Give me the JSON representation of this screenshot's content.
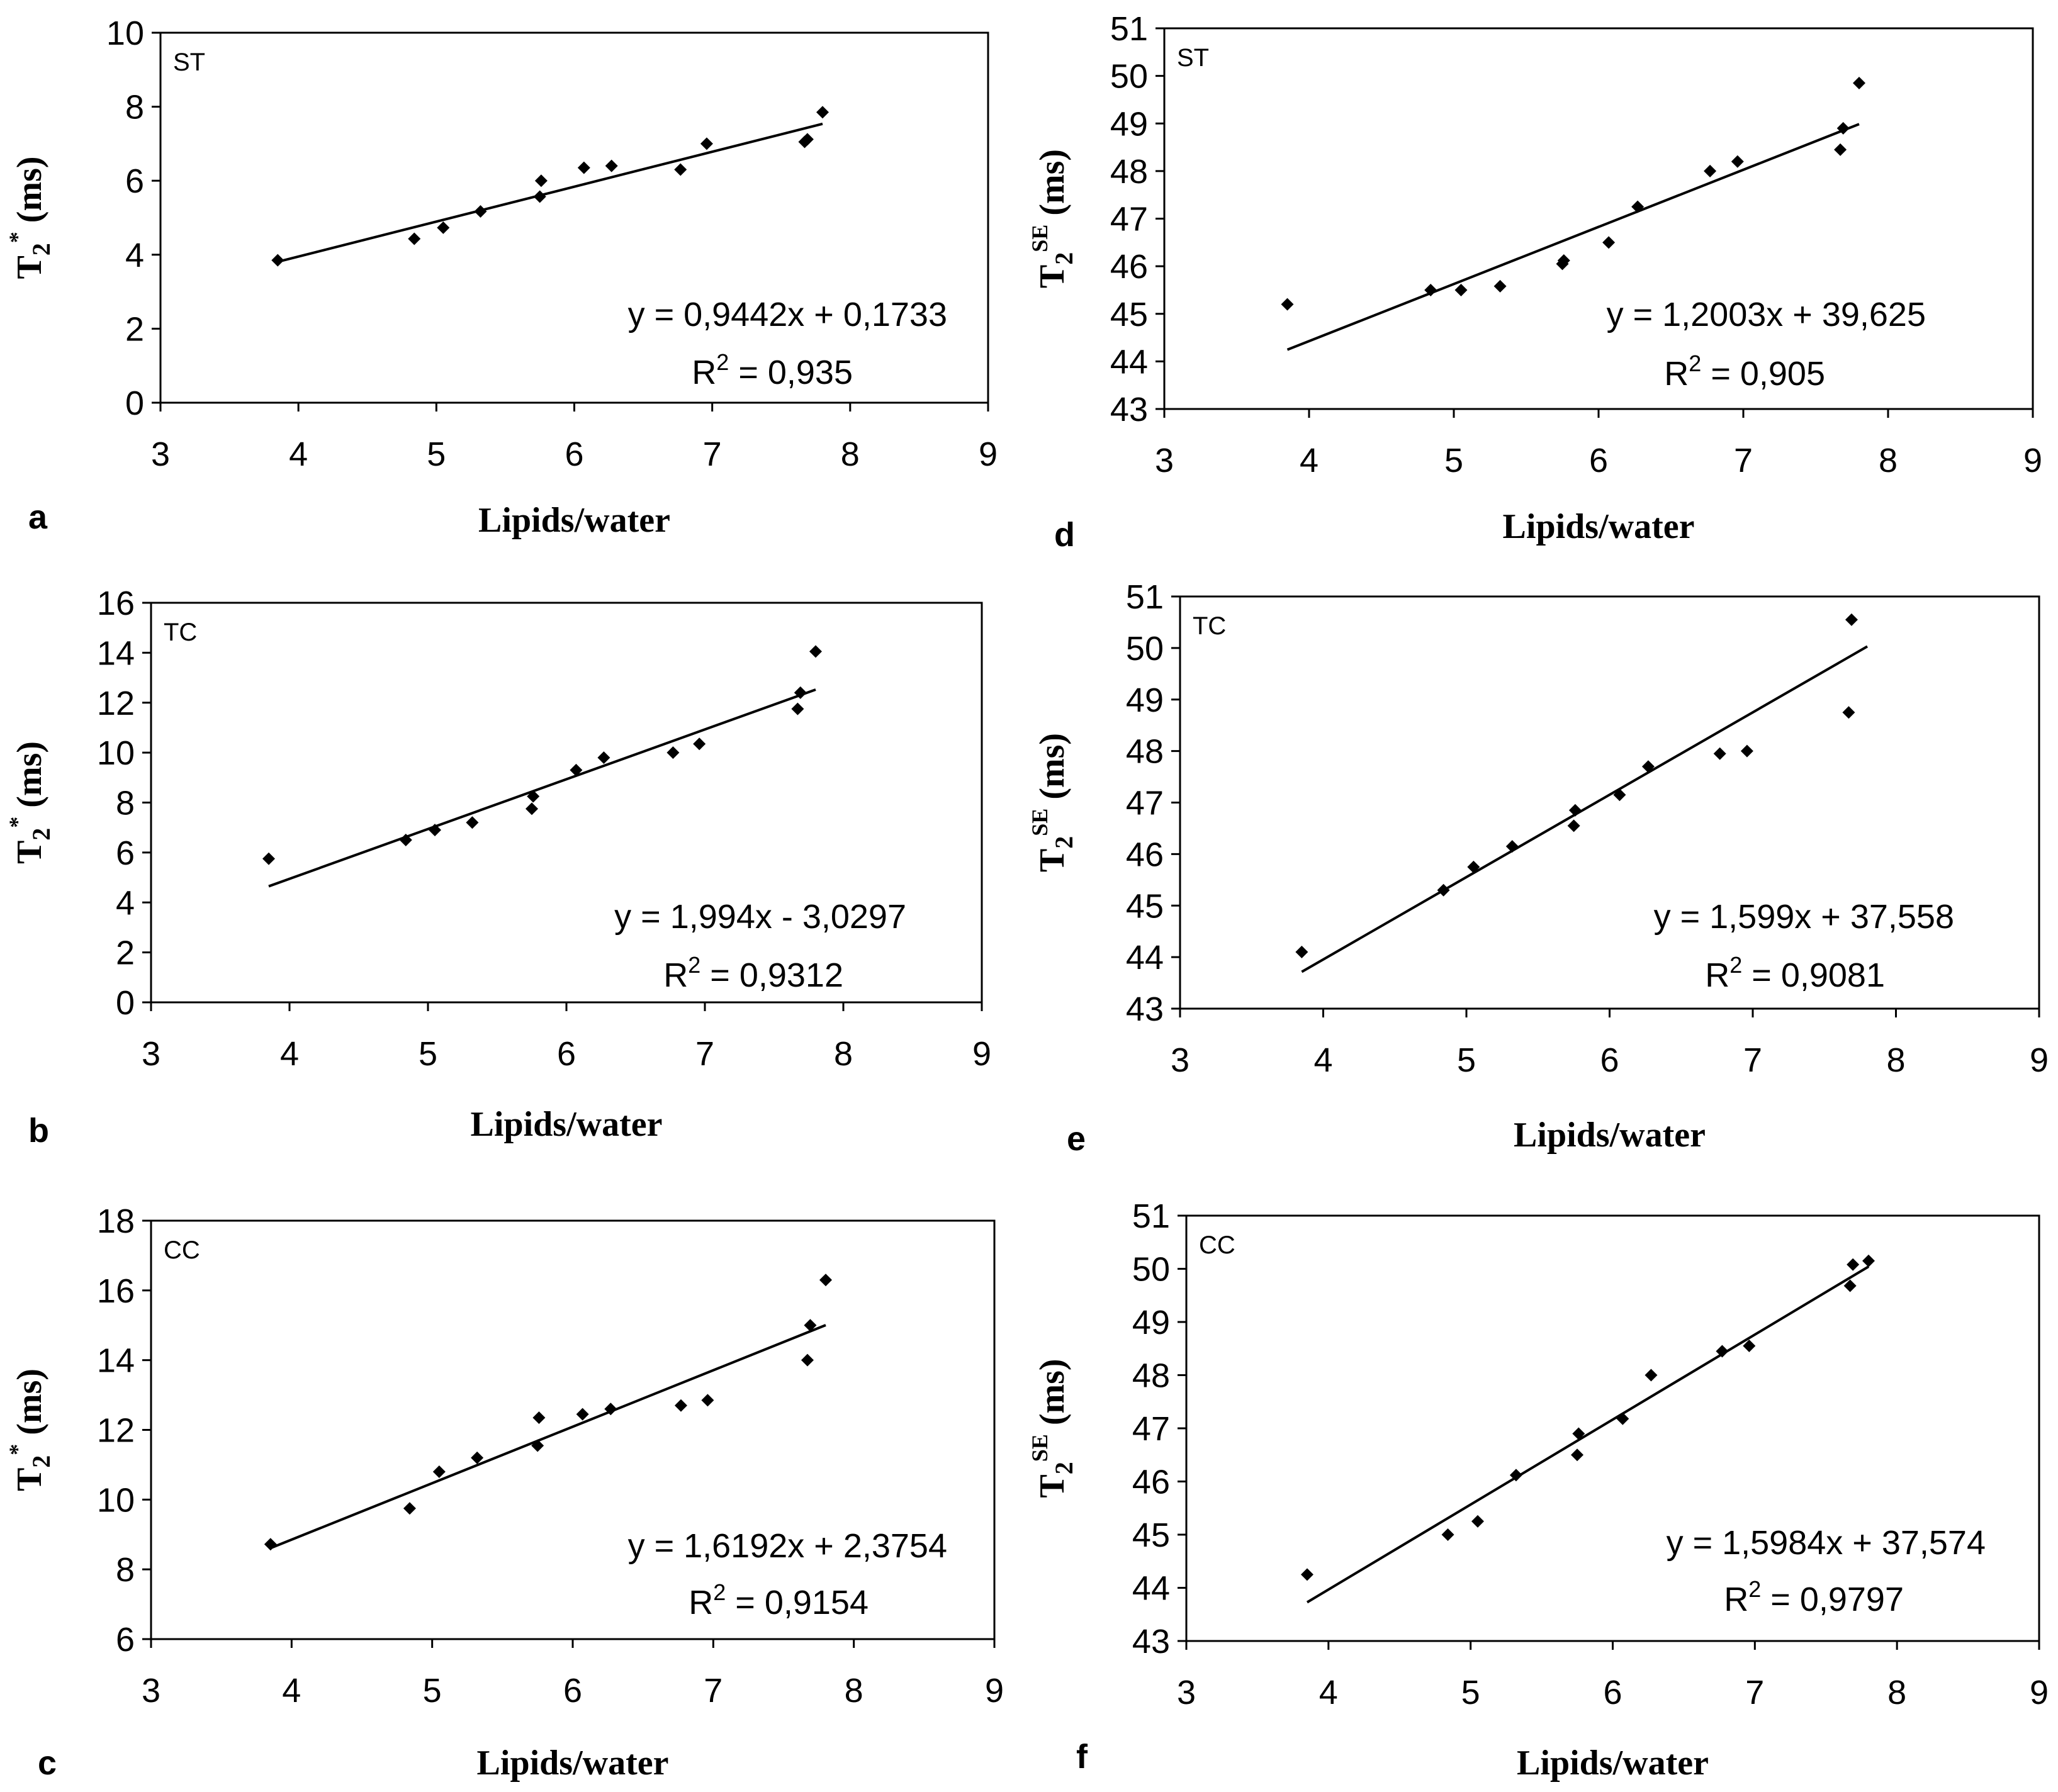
{
  "chart_data": [
    {
      "type": "scatter",
      "panel": "a",
      "tag": "ST",
      "xlabel": "Lipids/water",
      "ylabel_main": "T",
      "ylabel_sub": "2",
      "ylabel_sup": "*",
      "ylabel_unit": "(ms)",
      "xlim": [
        3,
        9
      ],
      "ylim": [
        0,
        10
      ],
      "xticks": [
        3,
        4,
        5,
        6,
        7,
        8,
        9
      ],
      "yticks": [
        0,
        2,
        4,
        6,
        8,
        10
      ],
      "points": [
        [
          3.85,
          3.85
        ],
        [
          4.84,
          4.43
        ],
        [
          5.05,
          4.73
        ],
        [
          5.32,
          5.17
        ],
        [
          5.75,
          5.57
        ],
        [
          5.76,
          6.0
        ],
        [
          6.07,
          6.35
        ],
        [
          6.27,
          6.4
        ],
        [
          6.77,
          6.3
        ],
        [
          6.96,
          7.0
        ],
        [
          7.67,
          7.05
        ],
        [
          7.69,
          7.12
        ],
        [
          7.8,
          7.85
        ]
      ],
      "fit": {
        "slope": 0.9442,
        "intercept": 0.1733,
        "x": [
          3.85,
          7.8
        ]
      },
      "equation": "y = 0,9442x + 0,1733",
      "r2_prefix": "R",
      "r2_exp": "2",
      "r2_value": " = 0,935"
    },
    {
      "type": "scatter",
      "panel": "b",
      "tag": "TC",
      "xlabel": "Lipids/water",
      "ylabel_main": "T",
      "ylabel_sub": "2",
      "ylabel_sup": "*",
      "ylabel_unit": "(ms)",
      "xlim": [
        3,
        9
      ],
      "ylim": [
        0,
        16
      ],
      "xticks": [
        3,
        4,
        5,
        6,
        7,
        8,
        9
      ],
      "yticks": [
        0,
        2,
        4,
        6,
        8,
        10,
        12,
        14,
        16
      ],
      "points": [
        [
          3.85,
          5.75
        ],
        [
          4.84,
          6.5
        ],
        [
          5.05,
          6.9
        ],
        [
          5.32,
          7.2
        ],
        [
          5.75,
          7.75
        ],
        [
          5.76,
          8.25
        ],
        [
          6.07,
          9.3
        ],
        [
          6.27,
          9.8
        ],
        [
          6.77,
          10.0
        ],
        [
          6.96,
          10.35
        ],
        [
          7.67,
          11.75
        ],
        [
          7.69,
          12.4
        ],
        [
          7.8,
          14.05
        ]
      ],
      "fit": {
        "slope": 1.994,
        "intercept": -3.0297,
        "x": [
          3.85,
          7.8
        ]
      },
      "equation": "y = 1,994x - 3,0297",
      "r2_prefix": "R",
      "r2_exp": "2",
      "r2_value": " = 0,9312"
    },
    {
      "type": "scatter",
      "panel": "c",
      "tag": "CC",
      "xlabel": "Lipids/water",
      "ylabel_main": "T",
      "ylabel_sub": "2",
      "ylabel_sup": "*",
      "ylabel_unit": "(ms)",
      "xlim": [
        3,
        9
      ],
      "ylim": [
        6,
        18
      ],
      "xticks": [
        3,
        4,
        5,
        6,
        7,
        8,
        9
      ],
      "yticks": [
        6,
        8,
        10,
        12,
        14,
        16,
        18
      ],
      "points": [
        [
          3.85,
          8.72
        ],
        [
          4.84,
          9.75
        ],
        [
          5.05,
          10.8
        ],
        [
          5.32,
          11.2
        ],
        [
          5.75,
          11.55
        ],
        [
          5.76,
          12.35
        ],
        [
          6.07,
          12.45
        ],
        [
          6.27,
          12.6
        ],
        [
          6.77,
          12.7
        ],
        [
          6.96,
          12.85
        ],
        [
          7.67,
          14.0
        ],
        [
          7.69,
          15.0
        ],
        [
          7.8,
          16.3
        ]
      ],
      "fit": {
        "slope": 1.6192,
        "intercept": 2.3754,
        "x": [
          3.85,
          7.8
        ]
      },
      "equation": "y = 1,6192x + 2,3754",
      "r2_prefix": "R",
      "r2_exp": "2",
      "r2_value": " = 0,9154"
    },
    {
      "type": "scatter",
      "panel": "d",
      "tag": "ST",
      "xlabel": "Lipids/water",
      "ylabel_main": "T",
      "ylabel_sub": "2",
      "ylabel_sup": "SE",
      "ylabel_unit": "(ms)",
      "xlim": [
        3,
        9
      ],
      "ylim": [
        43,
        51
      ],
      "xticks": [
        3,
        4,
        5,
        6,
        7,
        8,
        9
      ],
      "yticks": [
        43,
        44,
        45,
        46,
        47,
        48,
        49,
        50,
        51
      ],
      "points": [
        [
          3.85,
          45.2
        ],
        [
          4.84,
          45.5
        ],
        [
          5.05,
          45.5
        ],
        [
          5.32,
          45.58
        ],
        [
          5.75,
          46.05
        ],
        [
          5.76,
          46.12
        ],
        [
          6.07,
          46.5
        ],
        [
          6.27,
          47.25
        ],
        [
          6.77,
          48.0
        ],
        [
          6.96,
          48.2
        ],
        [
          7.67,
          48.45
        ],
        [
          7.69,
          48.9
        ],
        [
          7.8,
          49.85
        ]
      ],
      "fit": {
        "slope": 1.2003,
        "intercept": 39.625,
        "x": [
          3.85,
          7.8
        ]
      },
      "equation": "y = 1,2003x + 39,625",
      "r2_prefix": "R",
      "r2_exp": "2",
      "r2_value": " = 0,905"
    },
    {
      "type": "scatter",
      "panel": "e",
      "tag": "TC",
      "xlabel": "Lipids/water",
      "ylabel_main": "T",
      "ylabel_sub": "2",
      "ylabel_sup": "SE",
      "ylabel_unit": "(ms)",
      "xlim": [
        3,
        9
      ],
      "ylim": [
        43,
        51
      ],
      "xticks": [
        3,
        4,
        5,
        6,
        7,
        8,
        9
      ],
      "yticks": [
        43,
        44,
        45,
        46,
        47,
        48,
        49,
        50,
        51
      ],
      "points": [
        [
          3.85,
          44.1
        ],
        [
          4.84,
          45.3
        ],
        [
          5.05,
          45.75
        ],
        [
          5.32,
          46.15
        ],
        [
          5.75,
          46.55
        ],
        [
          5.76,
          46.85
        ],
        [
          6.07,
          47.15
        ],
        [
          6.27,
          47.7
        ],
        [
          6.77,
          47.95
        ],
        [
          6.96,
          48.0
        ],
        [
          7.67,
          48.75
        ],
        [
          7.69,
          50.55
        ]
      ],
      "fit": {
        "slope": 1.599,
        "intercept": 37.558,
        "x": [
          3.85,
          7.8
        ]
      },
      "equation": "y = 1,599x + 37,558",
      "r2_prefix": "R",
      "r2_exp": "2",
      "r2_value": " = 0,9081"
    },
    {
      "type": "scatter",
      "panel": "f",
      "tag": "CC",
      "xlabel": "Lipids/water",
      "ylabel_main": "T",
      "ylabel_sub": "2",
      "ylabel_sup": "SE",
      "ylabel_unit": "(ms)",
      "xlim": [
        3,
        9
      ],
      "ylim": [
        43,
        51
      ],
      "xticks": [
        3,
        4,
        5,
        6,
        7,
        8,
        9
      ],
      "yticks": [
        43,
        44,
        45,
        46,
        47,
        48,
        49,
        50,
        51
      ],
      "points": [
        [
          3.85,
          44.25
        ],
        [
          4.84,
          45.0
        ],
        [
          5.05,
          45.25
        ],
        [
          5.32,
          46.12
        ],
        [
          5.75,
          46.5
        ],
        [
          5.76,
          46.9
        ],
        [
          6.07,
          47.18
        ],
        [
          6.27,
          48.0
        ],
        [
          6.77,
          48.45
        ],
        [
          6.96,
          48.55
        ],
        [
          7.67,
          49.68
        ],
        [
          7.69,
          50.08
        ],
        [
          7.8,
          50.15
        ]
      ],
      "fit": {
        "slope": 1.5984,
        "intercept": 37.574,
        "x": [
          3.85,
          7.8
        ]
      },
      "equation": "y = 1,5984x + 37,574",
      "r2_prefix": "R",
      "r2_exp": "2",
      "r2_value": " = 0,9797"
    }
  ]
}
